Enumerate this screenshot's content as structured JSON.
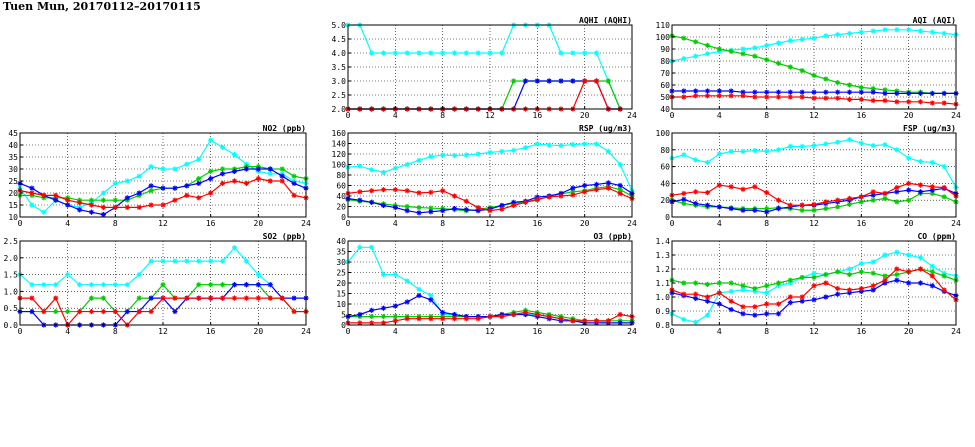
{
  "page": {
    "title": "Tuen Mun, 20170112–20170115"
  },
  "chart_data": [
    {
      "id": "aqhi",
      "type": "line",
      "title": "AQHI (AQHI)",
      "xlim": [
        0,
        24
      ],
      "xticks": [
        0,
        4,
        8,
        12,
        16,
        20,
        24
      ],
      "ylim": [
        2.0,
        5.0
      ],
      "yticks": [
        2.0,
        2.5,
        3.0,
        3.5,
        4.0,
        4.5,
        5.0
      ],
      "ytick_decimals": 1,
      "grid": true,
      "series": [
        {
          "color": "#00ffff",
          "values": [
            5,
            5,
            4,
            4,
            4,
            4,
            4,
            4,
            4,
            4,
            4,
            4,
            4,
            4,
            5,
            5,
            5,
            5,
            4,
            4,
            4,
            4,
            3,
            2
          ]
        },
        {
          "color": "#00cc00",
          "values": [
            2,
            2,
            2,
            2,
            2,
            2,
            2,
            2,
            2,
            2,
            2,
            2,
            2,
            2,
            3,
            3,
            3,
            3,
            3,
            3,
            3,
            3,
            3,
            2
          ]
        },
        {
          "color": "#0000ff",
          "values": [
            2,
            2,
            2,
            2,
            2,
            2,
            2,
            2,
            2,
            2,
            2,
            2,
            2,
            2,
            2,
            3,
            3,
            3,
            3,
            3,
            3,
            3,
            2,
            2
          ]
        },
        {
          "color": "#ff0000",
          "values": [
            2,
            2,
            2,
            2,
            2,
            2,
            2,
            2,
            2,
            2,
            2,
            2,
            2,
            2,
            2,
            2,
            2,
            2,
            2,
            2,
            3,
            3,
            2,
            2
          ]
        }
      ]
    },
    {
      "id": "aqi",
      "type": "line",
      "title": "AQI (AQI)",
      "xlim": [
        0,
        24
      ],
      "xticks": [
        0,
        4,
        8,
        12,
        16,
        20,
        24
      ],
      "ylim": [
        40,
        110
      ],
      "yticks": [
        40,
        50,
        60,
        70,
        80,
        90,
        100,
        110
      ],
      "ytick_decimals": 0,
      "grid": true,
      "series": [
        {
          "color": "#00ffff",
          "values": [
            80,
            82,
            84,
            86,
            88,
            89,
            90,
            91,
            93,
            95,
            97,
            98,
            99,
            101,
            102,
            103,
            104,
            105,
            106,
            106,
            106,
            105,
            104,
            103,
            102
          ]
        },
        {
          "color": "#00cc00",
          "values": [
            101,
            99,
            96,
            93,
            90,
            88,
            86,
            84,
            81,
            78,
            75,
            72,
            68,
            65,
            62,
            60,
            58,
            57,
            56,
            55,
            54,
            54,
            53,
            53,
            53
          ]
        },
        {
          "color": "#0000ff",
          "values": [
            55,
            55,
            55,
            55,
            55,
            55,
            54,
            54,
            54,
            54,
            54,
            54,
            54,
            54,
            54,
            54,
            54,
            54,
            53,
            53,
            53,
            53,
            53,
            53,
            53
          ]
        },
        {
          "color": "#ff0000",
          "values": [
            50,
            50,
            51,
            51,
            51,
            51,
            51,
            50,
            50,
            50,
            50,
            50,
            49,
            49,
            49,
            48,
            48,
            47,
            47,
            46,
            46,
            46,
            45,
            45,
            44
          ]
        }
      ]
    },
    {
      "id": "no2",
      "type": "line",
      "title": "NO2 (ppb)",
      "xlim": [
        0,
        24
      ],
      "xticks": [
        0,
        4,
        8,
        12,
        16,
        20,
        24
      ],
      "ylim": [
        10,
        45
      ],
      "yticks": [
        10,
        15,
        20,
        25,
        30,
        35,
        40,
        45
      ],
      "ytick_decimals": 0,
      "grid": true,
      "series": [
        {
          "color": "#00ffff",
          "values": [
            22,
            15,
            12,
            17,
            15,
            14,
            16,
            20,
            24,
            25,
            27,
            31,
            30,
            30,
            32,
            34,
            42,
            39,
            36,
            32,
            29,
            28,
            28,
            25,
            24
          ]
        },
        {
          "color": "#00cc00",
          "values": [
            19,
            19,
            18,
            18,
            18,
            17,
            17,
            17,
            17,
            17,
            19,
            21,
            22,
            22,
            23,
            26,
            29,
            30,
            30,
            31,
            31,
            30,
            30,
            27,
            26
          ]
        },
        {
          "color": "#0000ff",
          "values": [
            24,
            22,
            19,
            17,
            15,
            13,
            12,
            11,
            14,
            18,
            20,
            23,
            22,
            22,
            23,
            24,
            26,
            28,
            29,
            30,
            30,
            30,
            27,
            24,
            22
          ]
        },
        {
          "color": "#ff0000",
          "values": [
            21,
            20,
            19,
            19,
            17,
            16,
            15,
            14,
            14,
            14,
            14,
            15,
            15,
            17,
            19,
            18,
            20,
            24,
            25,
            24,
            26,
            25,
            25,
            19,
            18
          ]
        }
      ]
    },
    {
      "id": "rsp",
      "type": "line",
      "title": "RSP (ug/m3)",
      "xlim": [
        0,
        24
      ],
      "xticks": [
        0,
        4,
        8,
        12,
        16,
        20,
        24
      ],
      "ylim": [
        0,
        160
      ],
      "yticks": [
        0,
        20,
        40,
        60,
        80,
        100,
        120,
        140,
        160
      ],
      "ytick_decimals": 0,
      "grid": true,
      "series": [
        {
          "color": "#00ffff",
          "values": [
            95,
            97,
            90,
            85,
            93,
            100,
            108,
            115,
            118,
            117,
            118,
            120,
            123,
            125,
            127,
            132,
            139,
            137,
            136,
            138,
            139,
            139,
            125,
            100,
            50
          ]
        },
        {
          "color": "#00cc00",
          "values": [
            33,
            30,
            28,
            25,
            22,
            20,
            18,
            17,
            16,
            14,
            12,
            14,
            18,
            22,
            26,
            28,
            32,
            40,
            44,
            48,
            50,
            55,
            58,
            52,
            40
          ]
        },
        {
          "color": "#0000ff",
          "values": [
            35,
            32,
            28,
            22,
            18,
            12,
            8,
            10,
            12,
            16,
            14,
            12,
            15,
            22,
            28,
            30,
            38,
            40,
            45,
            55,
            60,
            62,
            65,
            60,
            45
          ]
        },
        {
          "color": "#ff0000",
          "values": [
            45,
            48,
            50,
            52,
            52,
            50,
            46,
            47,
            50,
            40,
            30,
            18,
            12,
            15,
            22,
            28,
            34,
            38,
            40,
            42,
            48,
            52,
            55,
            45,
            35
          ]
        }
      ]
    },
    {
      "id": "fsp",
      "type": "line",
      "title": "FSP (ug/m3)",
      "xlim": [
        0,
        24
      ],
      "xticks": [
        0,
        4,
        8,
        12,
        16,
        20,
        24
      ],
      "ylim": [
        0,
        100
      ],
      "yticks": [
        0,
        20,
        40,
        60,
        80,
        100
      ],
      "ytick_decimals": 0,
      "grid": true,
      "series": [
        {
          "color": "#00ffff",
          "values": [
            70,
            74,
            68,
            65,
            75,
            78,
            78,
            79,
            78,
            80,
            84,
            84,
            85,
            87,
            89,
            92,
            88,
            85,
            86,
            80,
            70,
            66,
            65,
            60,
            35
          ]
        },
        {
          "color": "#00cc00",
          "values": [
            20,
            16,
            14,
            12,
            12,
            11,
            10,
            10,
            10,
            11,
            10,
            8,
            8,
            10,
            12,
            15,
            18,
            20,
            22,
            18,
            20,
            28,
            28,
            24,
            18
          ]
        },
        {
          "color": "#0000ff",
          "values": [
            18,
            21,
            16,
            14,
            12,
            10,
            8,
            8,
            6,
            10,
            12,
            14,
            14,
            16,
            18,
            20,
            24,
            26,
            28,
            30,
            32,
            30,
            32,
            34,
            28
          ]
        },
        {
          "color": "#ff0000",
          "values": [
            26,
            28,
            30,
            29,
            38,
            36,
            33,
            36,
            29,
            20,
            14,
            14,
            15,
            18,
            20,
            22,
            24,
            30,
            28,
            35,
            40,
            38,
            36,
            35,
            25
          ]
        }
      ]
    },
    {
      "id": "so2",
      "type": "line",
      "title": "SO2 (ppb)",
      "xlim": [
        0,
        24
      ],
      "xticks": [
        0,
        4,
        8,
        12,
        16,
        20,
        24
      ],
      "ylim": [
        0.0,
        2.5
      ],
      "yticks": [
        0.0,
        0.5,
        1.0,
        1.5,
        2.0,
        2.5
      ],
      "ytick_decimals": 1,
      "grid": true,
      "series": [
        {
          "color": "#00ffff",
          "values": [
            1.5,
            1.2,
            1.2,
            1.2,
            1.5,
            1.2,
            1.2,
            1.2,
            1.2,
            1.2,
            1.5,
            1.9,
            1.9,
            1.9,
            1.9,
            1.9,
            1.9,
            1.9,
            2.3,
            1.9,
            1.5,
            1.2,
            null,
            null,
            null
          ]
        },
        {
          "color": "#00cc00",
          "values": [
            0.4,
            0.4,
            0.4,
            0.4,
            0.4,
            0.4,
            0.8,
            0.8,
            0.4,
            0.4,
            0.8,
            0.8,
            1.2,
            0.8,
            0.8,
            1.2,
            1.2,
            1.2,
            1.2,
            1.2,
            1.2,
            0.8,
            0.8,
            0.4,
            0.4
          ]
        },
        {
          "color": "#0000ff",
          "values": [
            0.4,
            0.4,
            0.0,
            0.0,
            0.0,
            0.0,
            0.0,
            0.0,
            0.0,
            0.4,
            0.4,
            0.8,
            0.8,
            0.4,
            0.8,
            0.8,
            0.8,
            0.8,
            1.2,
            1.2,
            1.2,
            1.2,
            0.8,
            0.8,
            0.8
          ]
        },
        {
          "color": "#ff0000",
          "values": [
            0.8,
            0.8,
            0.4,
            0.8,
            0.0,
            0.4,
            0.4,
            0.4,
            0.4,
            0.0,
            0.4,
            0.4,
            0.8,
            0.8,
            0.8,
            0.8,
            0.8,
            0.8,
            0.8,
            0.8,
            0.8,
            0.8,
            0.8,
            0.4,
            0.4
          ]
        }
      ]
    },
    {
      "id": "o3",
      "type": "line",
      "title": "O3 (ppb)",
      "xlim": [
        0,
        24
      ],
      "xticks": [
        0,
        4,
        8,
        12,
        16,
        20,
        24
      ],
      "ylim": [
        0,
        40
      ],
      "yticks": [
        0,
        5,
        10,
        15,
        20,
        25,
        30,
        35,
        40
      ],
      "ytick_decimals": 0,
      "grid": true,
      "series": [
        {
          "color": "#00ffff",
          "values": [
            30,
            37,
            37,
            24,
            24,
            21,
            17,
            14,
            5,
            5,
            4,
            4,
            4,
            4,
            5,
            5,
            5,
            4,
            3,
            2,
            2,
            2,
            1,
            null,
            null
          ]
        },
        {
          "color": "#00cc00",
          "values": [
            4,
            4,
            4,
            4,
            4,
            4,
            4,
            4,
            4,
            4,
            4,
            4,
            4,
            5,
            6,
            7,
            6,
            5,
            4,
            3,
            2,
            2,
            2,
            2,
            2
          ]
        },
        {
          "color": "#0000ff",
          "values": [
            4,
            5,
            7,
            8,
            9,
            11,
            14,
            12,
            6,
            5,
            4,
            4,
            4,
            5,
            5,
            5,
            4,
            3,
            2,
            2,
            1,
            1,
            1,
            1,
            1
          ]
        },
        {
          "color": "#ff0000",
          "values": [
            1,
            1,
            1,
            1,
            2,
            3,
            3,
            3,
            3,
            3,
            3,
            3,
            4,
            4,
            5,
            6,
            5,
            4,
            3,
            2,
            2,
            2,
            2,
            5,
            4
          ]
        }
      ]
    },
    {
      "id": "co",
      "type": "line",
      "title": "CO (ppm)",
      "xlim": [
        0,
        24
      ],
      "xticks": [
        0,
        4,
        8,
        12,
        16,
        20,
        24
      ],
      "ylim": [
        0.8,
        1.4
      ],
      "yticks": [
        0.8,
        0.9,
        1.0,
        1.1,
        1.2,
        1.3,
        1.4
      ],
      "ytick_decimals": 1,
      "grid": true,
      "series": [
        {
          "color": "#00ffff",
          "values": [
            0.88,
            0.84,
            0.82,
            0.87,
            1.03,
            1.04,
            1.05,
            1.04,
            1.03,
            1.08,
            1.1,
            1.14,
            1.17,
            1.16,
            1.18,
            1.2,
            1.24,
            1.25,
            1.3,
            1.32,
            1.3,
            1.28,
            1.22,
            1.17,
            1.15
          ]
        },
        {
          "color": "#00cc00",
          "values": [
            1.12,
            1.1,
            1.1,
            1.09,
            1.1,
            1.1,
            1.08,
            1.06,
            1.08,
            1.1,
            1.12,
            1.14,
            1.14,
            1.16,
            1.18,
            1.16,
            1.18,
            1.17,
            1.15,
            1.16,
            1.18,
            1.2,
            1.18,
            1.15,
            1.12
          ]
        },
        {
          "color": "#0000ff",
          "values": [
            1.03,
            1.01,
            0.99,
            0.97,
            0.95,
            0.91,
            0.88,
            0.87,
            0.88,
            0.88,
            0.96,
            0.97,
            0.98,
            1.0,
            1.02,
            1.03,
            1.04,
            1.05,
            1.1,
            1.12,
            1.1,
            1.1,
            1.08,
            1.04,
            1.01
          ]
        },
        {
          "color": "#ff0000",
          "values": [
            1.05,
            1.02,
            1.02,
            1.0,
            1.03,
            0.97,
            0.93,
            0.93,
            0.95,
            0.95,
            1.0,
            1.0,
            1.08,
            1.1,
            1.06,
            1.05,
            1.06,
            1.08,
            1.12,
            1.2,
            1.18,
            1.2,
            1.15,
            1.05,
            0.98
          ]
        }
      ]
    }
  ]
}
